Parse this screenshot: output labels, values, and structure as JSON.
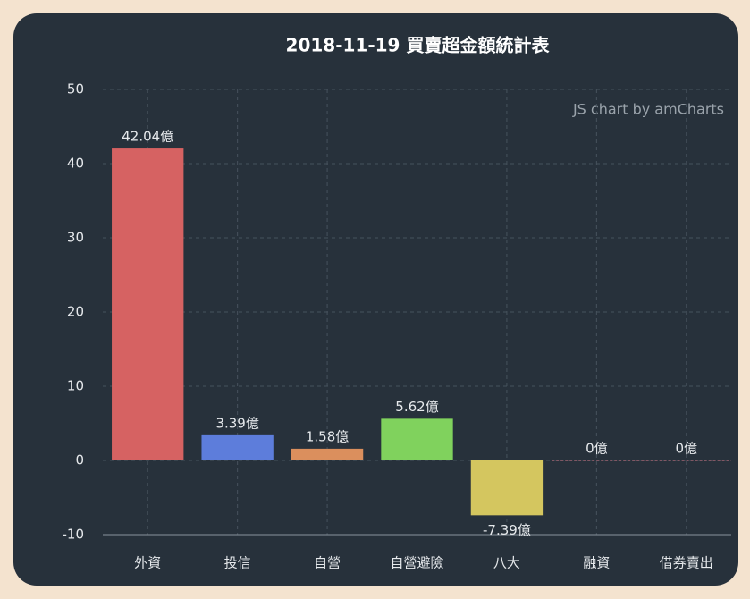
{
  "chart_data": {
    "type": "bar",
    "title": "2018-11-19 買賣超金額統計表",
    "credit": "JS chart by amCharts",
    "categories": [
      "外資",
      "投信",
      "自營",
      "自營避險",
      "八大",
      "融資",
      "借券賣出"
    ],
    "values": [
      42.04,
      3.39,
      1.58,
      5.62,
      -7.39,
      0,
      0
    ],
    "value_labels": [
      "42.04億",
      "3.39億",
      "1.58億",
      "5.62億",
      "-7.39億",
      "0億",
      "0億"
    ],
    "colors": [
      "#d66262",
      "#5d7ddb",
      "#db8f5d",
      "#80d25d",
      "#d4c65f",
      "#d87d8c",
      "#d87d8c"
    ],
    "ylim": [
      -10,
      50
    ],
    "yticks": [
      -10,
      0,
      10,
      20,
      30,
      40,
      50
    ],
    "grid": true
  }
}
